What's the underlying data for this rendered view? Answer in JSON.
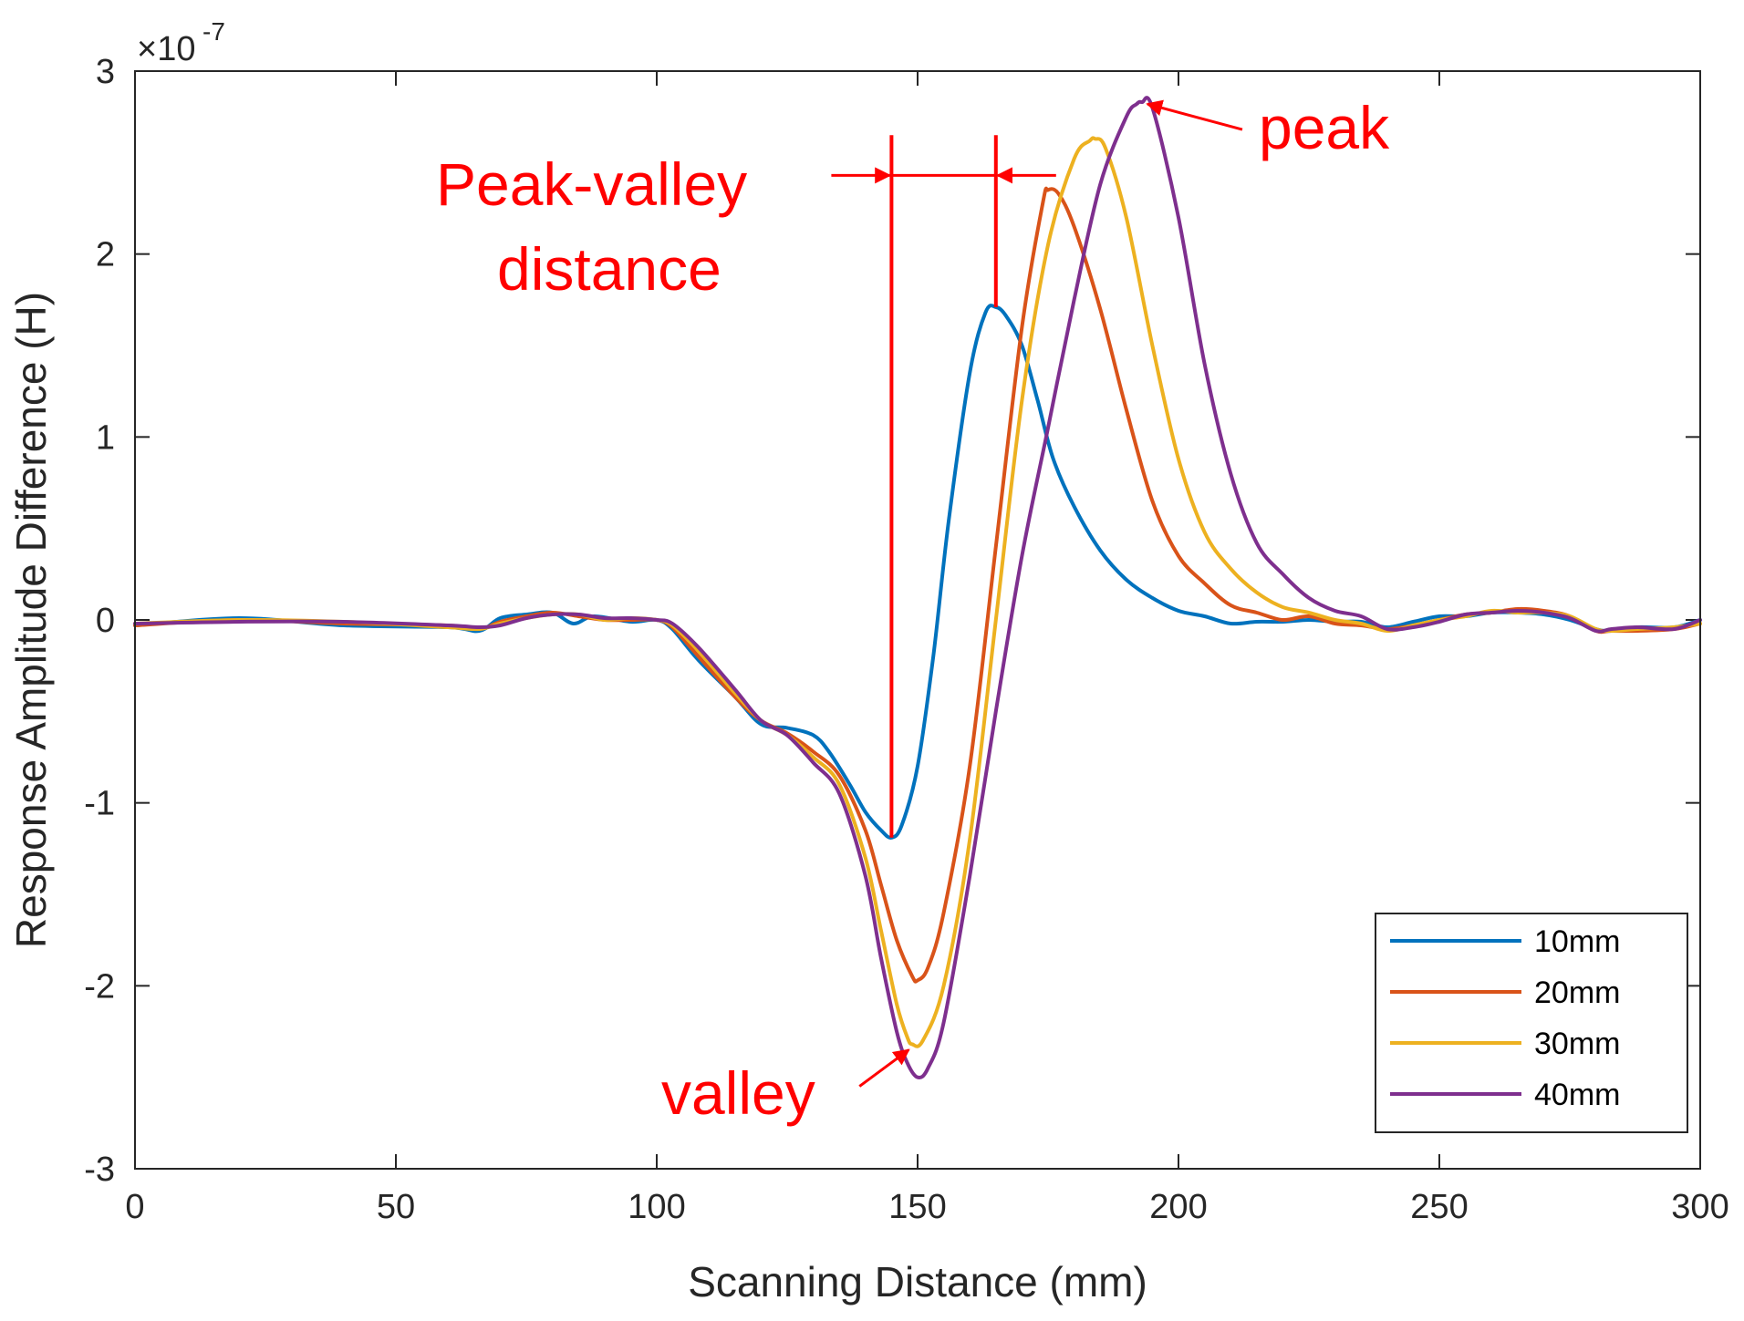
{
  "chart_data": {
    "type": "line",
    "xlabel": "Scanning Distance (mm)",
    "ylabel": "Response Amplitude Difference (H)",
    "exponent_base": "×10",
    "exponent_power": "-7",
    "xlim": [
      0,
      300
    ],
    "ylim": [
      -3,
      3
    ],
    "x_ticks": [
      0,
      50,
      100,
      150,
      200,
      250,
      300
    ],
    "y_ticks": [
      -3,
      -2,
      -1,
      0,
      1,
      2,
      3
    ],
    "x_tick_labels": [
      "0",
      "50",
      "100",
      "150",
      "200",
      "250",
      "300"
    ],
    "y_tick_labels": [
      "-3",
      "-2",
      "-1",
      "0",
      "1",
      "2",
      "3"
    ],
    "legend_position": "bottom-right",
    "series": [
      {
        "name": "10mm",
        "color": "#0072BD",
        "x": [
          0,
          20,
          40,
          60,
          66,
          70,
          75,
          80,
          84,
          88,
          95,
          100,
          103,
          108,
          115,
          120,
          125,
          130,
          133,
          137,
          140,
          143,
          145,
          147,
          150,
          153,
          156,
          160,
          163,
          165,
          167,
          170,
          173,
          176,
          180,
          185,
          190,
          195,
          200,
          205,
          210,
          215,
          220,
          225,
          230,
          235,
          240,
          245,
          250,
          255,
          260,
          265,
          270,
          275,
          280,
          283,
          288,
          295,
          300
        ],
        "y": [
          -0.03,
          0.01,
          -0.03,
          -0.04,
          -0.06,
          0.01,
          0.03,
          0.04,
          -0.02,
          0.02,
          -0.01,
          0.0,
          -0.05,
          -0.22,
          -0.42,
          -0.57,
          -0.59,
          -0.63,
          -0.72,
          -0.9,
          -1.05,
          -1.15,
          -1.19,
          -1.12,
          -0.8,
          -0.2,
          0.55,
          1.35,
          1.68,
          1.71,
          1.66,
          1.5,
          1.2,
          0.88,
          0.62,
          0.38,
          0.22,
          0.12,
          0.05,
          0.02,
          -0.02,
          -0.01,
          -0.01,
          0.0,
          -0.01,
          -0.01,
          -0.04,
          -0.01,
          0.02,
          0.02,
          0.04,
          0.04,
          0.03,
          0.0,
          -0.05,
          -0.06,
          -0.04,
          -0.04,
          0.0
        ]
      },
      {
        "name": "20mm",
        "color": "#D95319",
        "x": [
          0,
          20,
          40,
          60,
          66,
          70,
          75,
          80,
          85,
          90,
          95,
          100,
          103,
          108,
          115,
          120,
          125,
          130,
          135,
          140,
          143,
          146,
          149,
          150,
          152,
          155,
          160,
          165,
          170,
          174,
          175,
          177,
          180,
          185,
          190,
          195,
          200,
          205,
          210,
          215,
          220,
          225,
          230,
          235,
          240,
          245,
          250,
          255,
          260,
          265,
          270,
          275,
          280,
          283,
          288,
          295,
          300
        ],
        "y": [
          -0.03,
          0.0,
          -0.02,
          -0.03,
          -0.05,
          -0.01,
          0.02,
          0.04,
          0.02,
          0.0,
          0.0,
          0.0,
          -0.04,
          -0.2,
          -0.42,
          -0.55,
          -0.62,
          -0.72,
          -0.85,
          -1.15,
          -1.45,
          -1.75,
          -1.95,
          -1.97,
          -1.9,
          -1.6,
          -0.8,
          0.4,
          1.6,
          2.28,
          2.35,
          2.33,
          2.15,
          1.7,
          1.15,
          0.65,
          0.35,
          0.2,
          0.08,
          0.04,
          0.0,
          0.02,
          -0.02,
          -0.03,
          -0.05,
          -0.03,
          0.0,
          0.03,
          0.04,
          0.06,
          0.05,
          0.02,
          -0.06,
          -0.06,
          -0.06,
          -0.05,
          -0.02
        ]
      },
      {
        "name": "30mm",
        "color": "#EDB120",
        "x": [
          0,
          20,
          40,
          60,
          66,
          70,
          75,
          80,
          85,
          90,
          95,
          100,
          103,
          108,
          115,
          120,
          125,
          130,
          135,
          140,
          143,
          146,
          148,
          149,
          151,
          155,
          160,
          165,
          170,
          175,
          180,
          183,
          184,
          186,
          190,
          195,
          200,
          205,
          210,
          215,
          220,
          225,
          230,
          235,
          240,
          245,
          250,
          255,
          260,
          265,
          270,
          275,
          280,
          283,
          288,
          295,
          300
        ],
        "y": [
          -0.02,
          0.0,
          -0.01,
          -0.04,
          -0.05,
          -0.02,
          0.01,
          0.03,
          0.03,
          0.0,
          0.01,
          0.0,
          -0.03,
          -0.17,
          -0.4,
          -0.55,
          -0.63,
          -0.75,
          -0.9,
          -1.3,
          -1.7,
          -2.1,
          -2.28,
          -2.32,
          -2.3,
          -2.0,
          -1.2,
          0.0,
          1.2,
          2.05,
          2.52,
          2.62,
          2.63,
          2.58,
          2.2,
          1.5,
          0.88,
          0.48,
          0.28,
          0.15,
          0.07,
          0.04,
          0.0,
          -0.02,
          -0.06,
          -0.03,
          0.0,
          0.02,
          0.05,
          0.04,
          0.04,
          0.02,
          -0.05,
          -0.06,
          -0.05,
          -0.04,
          -0.02
        ]
      },
      {
        "name": "40mm",
        "color": "#7E2F8E",
        "x": [
          0,
          20,
          40,
          60,
          66,
          70,
          75,
          80,
          85,
          90,
          95,
          100,
          103,
          108,
          115,
          120,
          125,
          130,
          135,
          140,
          143,
          146,
          148,
          150,
          152,
          155,
          160,
          165,
          170,
          175,
          180,
          185,
          190,
          192,
          193,
          195,
          200,
          205,
          210,
          215,
          220,
          225,
          230,
          235,
          240,
          245,
          250,
          255,
          260,
          265,
          270,
          275,
          280,
          283,
          288,
          295,
          300
        ],
        "y": [
          -0.02,
          -0.01,
          -0.01,
          -0.03,
          -0.04,
          -0.03,
          0.01,
          0.03,
          0.03,
          0.01,
          0.01,
          0.0,
          -0.02,
          -0.15,
          -0.38,
          -0.55,
          -0.63,
          -0.78,
          -0.95,
          -1.4,
          -1.85,
          -2.25,
          -2.42,
          -2.5,
          -2.45,
          -2.2,
          -1.4,
          -0.5,
          0.35,
          1.05,
          1.75,
          2.38,
          2.75,
          2.82,
          2.83,
          2.8,
          2.2,
          1.4,
          0.8,
          0.42,
          0.25,
          0.12,
          0.05,
          0.02,
          -0.05,
          -0.04,
          -0.01,
          0.03,
          0.04,
          0.05,
          0.04,
          0.01,
          -0.06,
          -0.05,
          -0.04,
          -0.05,
          0.0
        ]
      }
    ],
    "annotations": {
      "peak_valley_line1": "Peak-valley",
      "peak_valley_line2": "distance",
      "peak": "peak",
      "valley": "valley",
      "color": "#FF0000",
      "marker_x_left": 145,
      "marker_x_right": 165,
      "peak_point": [
        193,
        2.83
      ],
      "valley_point": [
        149,
        -2.32
      ]
    }
  }
}
